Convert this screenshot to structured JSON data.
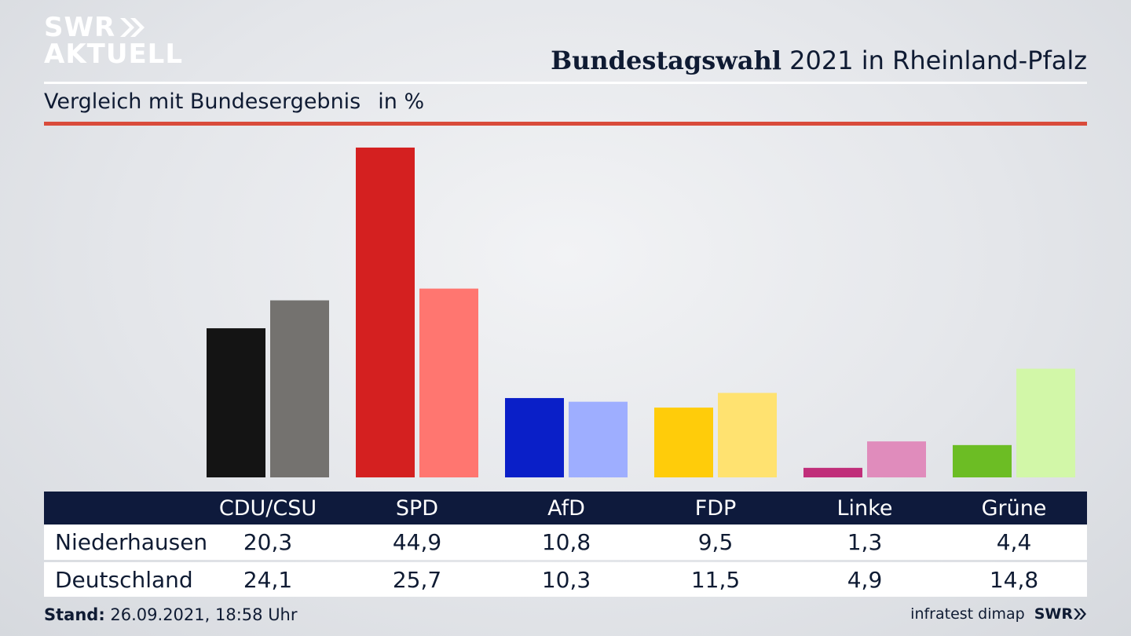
{
  "brand": {
    "line1": "SWR",
    "line2": "AKTUELL",
    "footer_logo": "SWR"
  },
  "header": {
    "title_bold": "Bundestagswahl",
    "title_rest": "2021 in Rheinland-Pfalz"
  },
  "subheader": {
    "text": "Vergleich mit Bundesergebnis",
    "unit": "in %"
  },
  "colors": {
    "header_bg": "#0e1a3c",
    "accent_rule": "#d94b3b"
  },
  "chart_data": {
    "type": "bar",
    "categories": [
      "CDU/CSU",
      "SPD",
      "AfD",
      "FDP",
      "Linke",
      "Grüne"
    ],
    "series": [
      {
        "name": "Niederhausen",
        "values": [
          "20,3",
          "44,9",
          "10,8",
          "9,5",
          "1,3",
          "4,4"
        ],
        "colors": [
          "#141414",
          "#d42020",
          "#0a1fc8",
          "#ffcc0a",
          "#c02e7a",
          "#6cbd24"
        ]
      },
      {
        "name": "Deutschland",
        "values": [
          "24,1",
          "25,7",
          "10,3",
          "11,5",
          "4,9",
          "14,8"
        ],
        "colors": [
          "#74726f",
          "#ff7670",
          "#9eaeff",
          "#ffe270",
          "#e08cbc",
          "#d2f7a8"
        ]
      }
    ],
    "ylim": [
      0,
      45
    ]
  },
  "footer": {
    "stand_label": "Stand:",
    "stand_value": "26.09.2021, 18:58 Uhr",
    "source": "infratest dimap"
  }
}
